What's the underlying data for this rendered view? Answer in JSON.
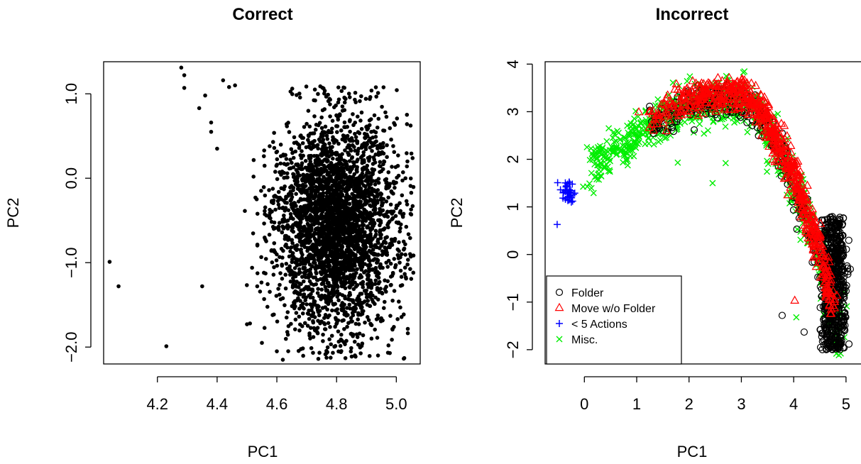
{
  "chart_data": [
    {
      "type": "scatter",
      "title": "Correct",
      "xlabel": "PC1",
      "ylabel": "PC2",
      "xlim": [
        4.02,
        5.08
      ],
      "ylim": [
        -2.2,
        1.38
      ],
      "xticks": [
        4.2,
        4.4,
        4.6,
        4.8,
        5.0
      ],
      "xtick_labels": [
        "4.2",
        "4.4",
        "4.6",
        "4.8",
        "5.0"
      ],
      "yticks": [
        1.0,
        0.0,
        -1.0,
        -2.0
      ],
      "ytick_labels": [
        "1.0",
        "0.0",
        "−1.0",
        "−2.0"
      ],
      "point_color": "#000000",
      "marker": "filled-circle",
      "outliers": [
        {
          "x": 4.04,
          "y": -0.99
        },
        {
          "x": 4.07,
          "y": -1.28
        },
        {
          "x": 4.23,
          "y": -1.99
        },
        {
          "x": 4.28,
          "y": 1.31
        },
        {
          "x": 4.29,
          "y": 1.22
        },
        {
          "x": 4.29,
          "y": 1.07
        },
        {
          "x": 4.34,
          "y": 0.83
        },
        {
          "x": 4.36,
          "y": 0.98
        },
        {
          "x": 4.35,
          "y": -1.28
        },
        {
          "x": 4.38,
          "y": 0.55
        },
        {
          "x": 4.38,
          "y": 0.66
        },
        {
          "x": 4.4,
          "y": 0.35
        },
        {
          "x": 4.42,
          "y": 1.16
        },
        {
          "x": 4.44,
          "y": 1.08
        },
        {
          "x": 4.46,
          "y": 1.1
        },
        {
          "x": 4.5,
          "y": -1.73
        },
        {
          "x": 4.51,
          "y": -1.72
        },
        {
          "x": 4.55,
          "y": -1.95
        },
        {
          "x": 4.62,
          "y": -2.15
        },
        {
          "x": 4.6,
          "y": -2.05
        },
        {
          "x": 4.98,
          "y": -1.63
        },
        {
          "x": 5.05,
          "y": -0.43
        },
        {
          "x": 4.82,
          "y": 0.8
        },
        {
          "x": 4.75,
          "y": 0.72
        }
      ],
      "main_cluster": {
        "count": 3200,
        "center_x": 4.8,
        "center_y": -0.55,
        "sd_x": 0.1,
        "sd_y": 0.62
      }
    },
    {
      "type": "scatter",
      "title": "Incorrect",
      "xlabel": "PC1",
      "ylabel": "PC2",
      "xlim": [
        -0.75,
        5.3
      ],
      "ylim": [
        -2.3,
        4.05
      ],
      "xticks": [
        0,
        1,
        2,
        3,
        4,
        5
      ],
      "xtick_labels": [
        "0",
        "1",
        "2",
        "3",
        "4",
        "5"
      ],
      "yticks": [
        4,
        3,
        2,
        1,
        0,
        -1,
        -2
      ],
      "ytick_labels": [
        "4",
        "3",
        "2",
        "1",
        "0",
        "−1",
        "−2"
      ],
      "legend_position": "bottom-left",
      "series": [
        {
          "name": "Folder",
          "marker": "open-circle",
          "color": "#000000",
          "count": 900,
          "arc": [
            1.3,
            5.0
          ]
        },
        {
          "name": "Move w/o Folder",
          "marker": "open-triangle",
          "color": "#ff0000",
          "count": 700,
          "arc": [
            1.0,
            4.75
          ]
        },
        {
          "name": "< 5 Actions",
          "marker": "plus",
          "color": "#0000ff",
          "count": 35,
          "points": [
            {
              "x": -0.52,
              "y": 0.63
            },
            {
              "x": -0.35,
              "y": 1.42
            },
            {
              "x": -0.3,
              "y": 1.3
            },
            {
              "x": -0.25,
              "y": 1.1
            }
          ]
        },
        {
          "name": "Misc.",
          "marker": "cross",
          "color": "#00ee00",
          "count": 900,
          "arc": [
            0.0,
            4.9
          ]
        }
      ],
      "isolated_points": [
        {
          "series": "Folder",
          "x": 3.78,
          "y": -1.28
        },
        {
          "series": "Folder",
          "x": 4.2,
          "y": -1.63
        },
        {
          "series": "Move w/o Folder",
          "x": 4.02,
          "y": -0.97
        },
        {
          "series": "Misc.",
          "x": 4.05,
          "y": -1.32
        },
        {
          "series": "Misc.",
          "x": 2.45,
          "y": 1.5
        },
        {
          "series": "Misc.",
          "x": 2.7,
          "y": 1.92
        }
      ]
    }
  ]
}
